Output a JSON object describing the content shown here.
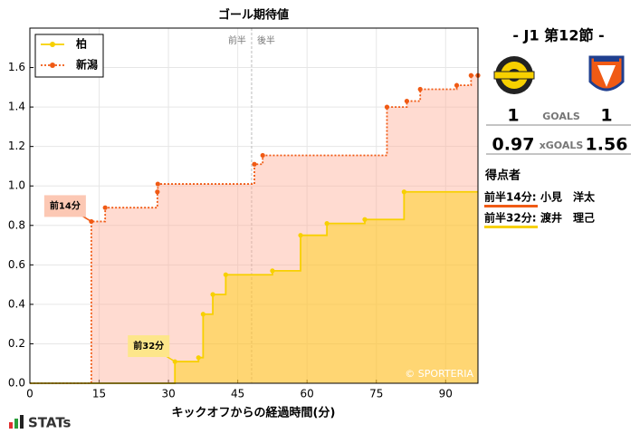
{
  "chart_data": {
    "type": "step",
    "title": "ゴール期待値",
    "x_label": "キックオフからの経過時間(分)",
    "xlim": [
      0,
      97
    ],
    "xticks": [
      0,
      15,
      30,
      45,
      60,
      75,
      90
    ],
    "ylim": [
      0,
      1.8
    ],
    "yticks": [
      {
        "value": 0,
        "label": "0.0"
      },
      {
        "value": 0.2,
        "label": "0.2"
      },
      {
        "value": 0.4,
        "label": "0.4"
      },
      {
        "value": 0.6,
        "label": "0.6"
      },
      {
        "value": 0.8,
        "label": "0.8"
      },
      {
        "value": 1.0,
        "label": "1.0"
      },
      {
        "value": 1.2,
        "label": "1.2"
      },
      {
        "value": 1.4,
        "label": "1.4"
      },
      {
        "value": 1.6,
        "label": "1.6"
      }
    ],
    "grid": true,
    "legend": "upper left",
    "halftime_line": 48,
    "halftime_labels": [
      "前半",
      "後半"
    ],
    "watermark": "© SPORTERIA",
    "series": [
      {
        "name": "柏",
        "color": "#f7d000",
        "fill": "#ffd000",
        "line_style": "solid",
        "x": [
          31.4,
          36.5,
          37.5,
          39.6,
          42.4,
          52.5,
          58.6,
          64.3,
          72.5,
          81.0
        ],
        "values": [
          0.11,
          0.13,
          0.35,
          0.45,
          0.55,
          0.57,
          0.75,
          0.81,
          0.83,
          0.97
        ]
      },
      {
        "name": "新潟",
        "color": "#f05a14",
        "fill": "#ffb09a",
        "line_style": "dotted",
        "x": [
          13.3,
          16.3,
          27.6,
          27.7,
          48.6,
          50.4,
          77.3,
          81.6,
          84.5,
          92.4,
          95.5,
          97.0
        ],
        "values": [
          0.82,
          0.89,
          0.97,
          1.01,
          1.11,
          1.155,
          1.4,
          1.43,
          1.49,
          1.51,
          1.56,
          1.56
        ]
      }
    ],
    "annotations": [
      {
        "text": "前14分",
        "series": 1,
        "point": 0,
        "color": "#fcc8b4"
      },
      {
        "text": "前32分",
        "series": 0,
        "point": 0,
        "color": "#fde68a"
      }
    ]
  },
  "panel": {
    "match": "- J1 第12節 -",
    "home_goals": 1,
    "goals_label": "GOALS",
    "away_goals": 1,
    "home_xg": 0.97,
    "xg_label": "xGOALS",
    "away_xg": 1.56,
    "scorers_title": "得点者",
    "scorers": [
      {
        "time": "前半14分:",
        "name": "小見　洋太",
        "color": "#f05a14"
      },
      {
        "time": "前半32分:",
        "name": "渡井　理己",
        "color": "#f7d000"
      }
    ]
  },
  "footer": {
    "brand": "STATs"
  }
}
